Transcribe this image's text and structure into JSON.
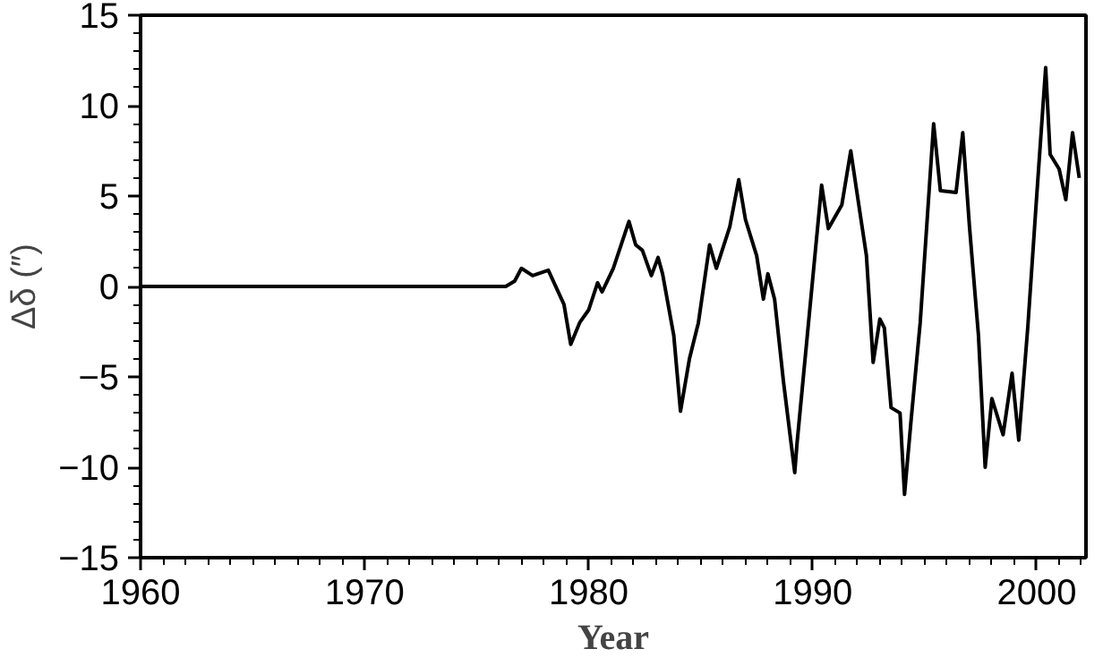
{
  "chart_data": {
    "type": "line",
    "xlabel": "Year",
    "ylabel": "Δδ (″)",
    "xlim": [
      1960,
      2002.2
    ],
    "ylim": [
      -15,
      15
    ],
    "xticks": [
      1960,
      1970,
      1980,
      1990,
      2000
    ],
    "yticks": [
      -15,
      -10,
      -5,
      0,
      5,
      10,
      15
    ],
    "grid": false,
    "marker": "none",
    "line_style": "solid",
    "series": [
      {
        "color": "#000000",
        "x": [
          1960,
          1976.3,
          1976.7,
          1977.0,
          1977.5,
          1978.2,
          1978.9,
          1979.2,
          1979.6,
          1980.0,
          1980.4,
          1980.6,
          1981.1,
          1981.8,
          1982.1,
          1982.4,
          1982.8,
          1983.1,
          1983.3,
          1983.8,
          1984.1,
          1984.5,
          1984.9,
          1985.4,
          1985.7,
          1986.3,
          1986.7,
          1987.0,
          1987.5,
          1987.8,
          1988.0,
          1988.3,
          1988.7,
          1989.2,
          1989.3,
          1990.1,
          1990.4,
          1990.7,
          1991.3,
          1991.7,
          1992.0,
          1992.4,
          1992.7,
          1993.0,
          1993.2,
          1993.5,
          1993.9,
          1994.1,
          1994.4,
          1994.8,
          1995.4,
          1995.7,
          1996.4,
          1996.7,
          1997.0,
          1997.4,
          1997.7,
          1998.0,
          1998.5,
          1998.9,
          1999.2,
          1999.6,
          2000.0,
          2000.4,
          2000.6,
          2001.0,
          2001.3,
          2001.6,
          2001.9
        ],
        "values": [
          0,
          0,
          0.3,
          1.0,
          0.6,
          0.9,
          -1.0,
          -3.2,
          -2.0,
          -1.3,
          0.2,
          -0.3,
          1.0,
          3.6,
          2.3,
          2.0,
          0.6,
          1.6,
          0.7,
          -2.7,
          -6.9,
          -4.0,
          -2.0,
          2.3,
          1.0,
          3.3,
          5.9,
          3.7,
          1.7,
          -0.7,
          0.7,
          -0.7,
          -5.3,
          -10.3,
          -8.7,
          1.7,
          5.6,
          3.2,
          4.5,
          7.5,
          5.0,
          1.7,
          -4.2,
          -1.8,
          -2.3,
          -6.7,
          -7.0,
          -11.5,
          -7.3,
          -2.0,
          9.0,
          5.3,
          5.2,
          8.5,
          3.3,
          -2.7,
          -10.0,
          -6.2,
          -8.2,
          -4.8,
          -8.5,
          -2.3,
          5.0,
          12.1,
          7.3,
          6.5,
          4.8,
          8.5,
          6.0
        ]
      }
    ]
  }
}
